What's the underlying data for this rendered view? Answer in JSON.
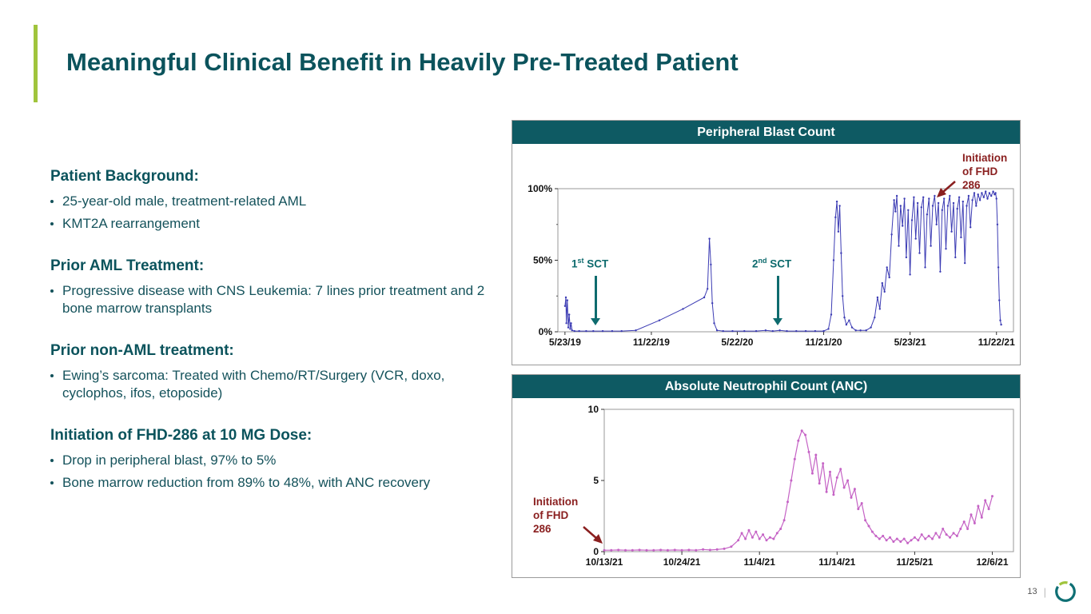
{
  "slide": {
    "title": "Meaningful Clinical Benefit in Heavily Pre-Treated Patient",
    "page_number": "13",
    "footer_divider": "|"
  },
  "colors": {
    "accent_green": "#a0c43c",
    "title_teal": "#0b535c",
    "header_bar_teal": "#0e5a63",
    "annotation_red": "#8a1f1f",
    "sct_arrow_teal": "#0e6b6e",
    "blast_line_blue": "#3c3cb4",
    "anc_line_magenta": "#c563c5"
  },
  "sections": [
    {
      "heading": "Patient Background:",
      "bullets": [
        "25-year-old male, treatment-related AML",
        "KMT2A rearrangement"
      ]
    },
    {
      "heading": "Prior AML Treatment:",
      "bullets": [
        "Progressive disease with CNS Leukemia: 7 lines prior treatment and 2 bone marrow transplants"
      ]
    },
    {
      "heading": "Prior non-AML treatment:",
      "bullets": [
        "Ewing’s sarcoma: Treated with Chemo/RT/Surgery (VCR, doxo, cyclophos, ifos, etoposide)"
      ]
    },
    {
      "heading": "Initiation of FHD-286 at 10 MG Dose:",
      "bullets": [
        "Drop in peripheral blast, 97% to 5%",
        "Bone marrow reduction from 89% to 48%, with ANC recovery"
      ]
    }
  ],
  "chart_data": [
    {
      "type": "line",
      "title": "Peripheral Blast Count",
      "xlabel": "",
      "ylabel": "",
      "legend": "none",
      "grid": "off",
      "xlim": [
        -15,
        950
      ],
      "ylim": [
        0,
        100
      ],
      "x_ticks": [
        {
          "value": 0,
          "label": "5/23/19"
        },
        {
          "value": 183,
          "label": "11/22/19"
        },
        {
          "value": 365,
          "label": "5/22/20"
        },
        {
          "value": 548,
          "label": "11/21/20"
        },
        {
          "value": 731,
          "label": "5/23/21"
        },
        {
          "value": 914,
          "label": "11/22/21"
        }
      ],
      "y_ticks": [
        {
          "value": 0,
          "label": "0%"
        },
        {
          "value": 50,
          "label": "50%"
        },
        {
          "value": 100,
          "label": "100%"
        }
      ],
      "y_minor_ticks": [
        25,
        75
      ],
      "line_color": "#3c3cb4",
      "annotations": [
        {
          "id": "sct1",
          "num": "1",
          "sup": "st",
          "rest": " SCT",
          "x_value": 80
        },
        {
          "id": "sct2",
          "num": "2",
          "sup": "nd",
          "rest": " SCT",
          "x_value": 455
        },
        {
          "id": "init",
          "lines": [
            "Initiation",
            "of FHD",
            "286"
          ],
          "x_value": 905
        }
      ],
      "points": [
        [
          0,
          18
        ],
        [
          2,
          24
        ],
        [
          3,
          6
        ],
        [
          5,
          22
        ],
        [
          7,
          3
        ],
        [
          9,
          12
        ],
        [
          11,
          2
        ],
        [
          13,
          6
        ],
        [
          15,
          1
        ],
        [
          20,
          0.5
        ],
        [
          30,
          0.5
        ],
        [
          45,
          0.5
        ],
        [
          60,
          0.5
        ],
        [
          80,
          0.5
        ],
        [
          100,
          0.5
        ],
        [
          120,
          0.5
        ],
        [
          150,
          1
        ],
        [
          200,
          8
        ],
        [
          250,
          16
        ],
        [
          295,
          24
        ],
        [
          302,
          30
        ],
        [
          306,
          65
        ],
        [
          309,
          47
        ],
        [
          312,
          20
        ],
        [
          316,
          6
        ],
        [
          322,
          1
        ],
        [
          335,
          0.5
        ],
        [
          355,
          0.5
        ],
        [
          380,
          0.5
        ],
        [
          405,
          0.5
        ],
        [
          425,
          1
        ],
        [
          440,
          0.5
        ],
        [
          455,
          1
        ],
        [
          470,
          0.5
        ],
        [
          490,
          0.5
        ],
        [
          510,
          0.5
        ],
        [
          530,
          0.5
        ],
        [
          548,
          0.5
        ],
        [
          558,
          2
        ],
        [
          564,
          12
        ],
        [
          569,
          50
        ],
        [
          573,
          80
        ],
        [
          576,
          91
        ],
        [
          579,
          70
        ],
        [
          582,
          88
        ],
        [
          585,
          55
        ],
        [
          588,
          25
        ],
        [
          592,
          10
        ],
        [
          596,
          5
        ],
        [
          602,
          8
        ],
        [
          608,
          3
        ],
        [
          616,
          1
        ],
        [
          626,
          1
        ],
        [
          638,
          1
        ],
        [
          648,
          3
        ],
        [
          656,
          10
        ],
        [
          662,
          24
        ],
        [
          667,
          16
        ],
        [
          672,
          34
        ],
        [
          677,
          28
        ],
        [
          682,
          45
        ],
        [
          687,
          38
        ],
        [
          692,
          68
        ],
        [
          697,
          92
        ],
        [
          700,
          84
        ],
        [
          703,
          95
        ],
        [
          707,
          60
        ],
        [
          711,
          88
        ],
        [
          715,
          74
        ],
        [
          719,
          93
        ],
        [
          723,
          52
        ],
        [
          727,
          85
        ],
        [
          731,
          40
        ],
        [
          735,
          78
        ],
        [
          739,
          94
        ],
        [
          743,
          65
        ],
        [
          747,
          90
        ],
        [
          751,
          55
        ],
        [
          755,
          87
        ],
        [
          759,
          94
        ],
        [
          763,
          45
        ],
        [
          767,
          82
        ],
        [
          771,
          93
        ],
        [
          775,
          60
        ],
        [
          779,
          88
        ],
        [
          783,
          95
        ],
        [
          787,
          75
        ],
        [
          791,
          90
        ],
        [
          795,
          42
        ],
        [
          799,
          85
        ],
        [
          803,
          93
        ],
        [
          807,
          58
        ],
        [
          811,
          88
        ],
        [
          815,
          95
        ],
        [
          819,
          70
        ],
        [
          823,
          90
        ],
        [
          827,
          52
        ],
        [
          831,
          86
        ],
        [
          835,
          94
        ],
        [
          839,
          66
        ],
        [
          843,
          91
        ],
        [
          847,
          48
        ],
        [
          851,
          88
        ],
        [
          855,
          95
        ],
        [
          859,
          73
        ],
        [
          863,
          92
        ],
        [
          867,
          97
        ],
        [
          871,
          88
        ],
        [
          875,
          96
        ],
        [
          879,
          92
        ],
        [
          883,
          97
        ],
        [
          887,
          94
        ],
        [
          891,
          98
        ],
        [
          895,
          93
        ],
        [
          899,
          97
        ],
        [
          903,
          95
        ],
        [
          907,
          98
        ],
        [
          910,
          96
        ],
        [
          912,
          97
        ],
        [
          914,
          93
        ],
        [
          916,
          75
        ],
        [
          918,
          45
        ],
        [
          920,
          22
        ],
        [
          922,
          8
        ],
        [
          924,
          5
        ]
      ]
    },
    {
      "type": "line",
      "title": "Absolute Neutrophil Count (ANC)",
      "xlabel": "",
      "ylabel": "",
      "legend": "none",
      "grid": "off",
      "xlim": [
        0,
        58
      ],
      "ylim": [
        0,
        10
      ],
      "x_ticks": [
        {
          "value": 0,
          "label": "10/13/21"
        },
        {
          "value": 11,
          "label": "10/24/21"
        },
        {
          "value": 22,
          "label": "11/4/21"
        },
        {
          "value": 33,
          "label": "11/14/21"
        },
        {
          "value": 44,
          "label": "11/25/21"
        },
        {
          "value": 55,
          "label": "12/6/21"
        }
      ],
      "y_ticks": [
        {
          "value": 0,
          "label": "0"
        },
        {
          "value": 5,
          "label": "5"
        },
        {
          "value": 10,
          "label": "10"
        }
      ],
      "y_minor_ticks": [],
      "line_color": "#c563c5",
      "annotations": [
        {
          "id": "init",
          "lines": [
            "Initiation",
            "of FHD",
            "286"
          ],
          "x_value": 0
        }
      ],
      "points": [
        [
          0,
          0.1
        ],
        [
          1,
          0.1
        ],
        [
          2,
          0.12
        ],
        [
          3,
          0.1
        ],
        [
          4,
          0.1
        ],
        [
          5,
          0.12
        ],
        [
          6,
          0.1
        ],
        [
          7,
          0.1
        ],
        [
          8,
          0.12
        ],
        [
          9,
          0.1
        ],
        [
          10,
          0.12
        ],
        [
          11,
          0.1
        ],
        [
          12,
          0.12
        ],
        [
          13,
          0.1
        ],
        [
          14,
          0.15
        ],
        [
          15,
          0.12
        ],
        [
          16,
          0.15
        ],
        [
          17,
          0.2
        ],
        [
          18,
          0.35
        ],
        [
          19,
          0.8
        ],
        [
          19.5,
          1.3
        ],
        [
          20,
          0.9
        ],
        [
          20.5,
          1.5
        ],
        [
          21,
          1.0
        ],
        [
          21.5,
          1.4
        ],
        [
          22,
          0.9
        ],
        [
          22.5,
          1.2
        ],
        [
          23,
          0.8
        ],
        [
          23.5,
          1.0
        ],
        [
          24,
          0.9
        ],
        [
          24.5,
          1.3
        ],
        [
          25,
          1.6
        ],
        [
          25.5,
          2.2
        ],
        [
          26,
          3.5
        ],
        [
          26.5,
          5.0
        ],
        [
          27,
          6.5
        ],
        [
          27.5,
          7.8
        ],
        [
          28,
          8.5
        ],
        [
          28.5,
          8.2
        ],
        [
          29,
          7.0
        ],
        [
          29.5,
          5.5
        ],
        [
          30,
          6.8
        ],
        [
          30.5,
          4.8
        ],
        [
          31,
          6.2
        ],
        [
          31.5,
          4.2
        ],
        [
          32,
          5.6
        ],
        [
          32.5,
          4.0
        ],
        [
          33,
          5.2
        ],
        [
          33.5,
          5.8
        ],
        [
          34,
          4.5
        ],
        [
          34.5,
          5.0
        ],
        [
          35,
          3.8
        ],
        [
          35.5,
          4.4
        ],
        [
          36,
          3.0
        ],
        [
          36.5,
          3.4
        ],
        [
          37,
          2.2
        ],
        [
          37.5,
          1.8
        ],
        [
          38,
          1.4
        ],
        [
          38.5,
          1.1
        ],
        [
          39,
          0.9
        ],
        [
          39.5,
          1.1
        ],
        [
          40,
          0.8
        ],
        [
          40.5,
          1.0
        ],
        [
          41,
          0.7
        ],
        [
          41.5,
          0.9
        ],
        [
          42,
          0.7
        ],
        [
          42.5,
          0.9
        ],
        [
          43,
          0.6
        ],
        [
          43.5,
          0.8
        ],
        [
          44,
          1.0
        ],
        [
          44.5,
          0.8
        ],
        [
          45,
          1.2
        ],
        [
          45.5,
          0.9
        ],
        [
          46,
          1.1
        ],
        [
          46.5,
          0.9
        ],
        [
          47,
          1.3
        ],
        [
          47.5,
          1.0
        ],
        [
          48,
          1.6
        ],
        [
          48.5,
          1.2
        ],
        [
          49,
          1.0
        ],
        [
          49.5,
          1.3
        ],
        [
          50,
          1.1
        ],
        [
          50.5,
          1.6
        ],
        [
          51,
          2.1
        ],
        [
          51.5,
          1.6
        ],
        [
          52,
          2.6
        ],
        [
          52.5,
          2.0
        ],
        [
          53,
          3.2
        ],
        [
          53.5,
          2.4
        ],
        [
          54,
          3.6
        ],
        [
          54.5,
          3.0
        ],
        [
          55,
          3.9
        ]
      ]
    }
  ]
}
